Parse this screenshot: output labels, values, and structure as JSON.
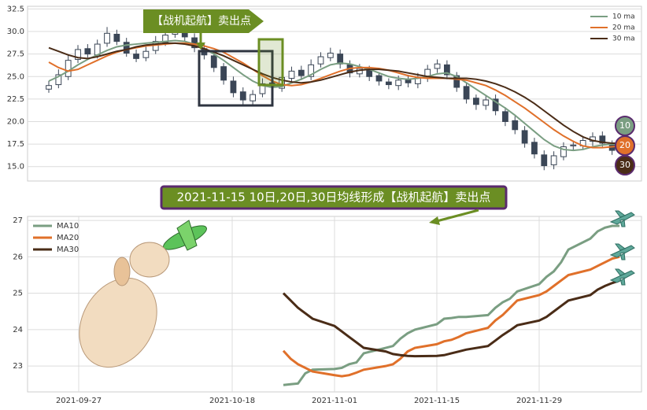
{
  "chart_data": [
    {
      "type": "candlestick",
      "annotation": "【战机起航】卖出点",
      "candle_color": "#3b4656",
      "ylim": [
        13.4,
        32.8
      ],
      "yticks": [
        {
          "value": 15,
          "label": "15.0"
        },
        {
          "value": 17.5,
          "label": "17.5"
        },
        {
          "value": 20,
          "label": "20.0"
        },
        {
          "value": 22.5,
          "label": "22.5"
        },
        {
          "value": 25,
          "label": "25.0"
        },
        {
          "value": 27.5,
          "label": "27.5"
        },
        {
          "value": 30,
          "label": "30.0"
        },
        {
          "value": 32.5,
          "label": "32.5"
        }
      ],
      "grid": true,
      "legend": "upper right",
      "badges": [
        "10",
        "20",
        "30"
      ],
      "open": [
        23.6,
        24.1,
        25.0,
        26.9,
        28.1,
        27.4,
        28.7,
        29.7,
        28.8,
        27.5,
        27.1,
        27.9,
        28.8,
        29.7,
        30.4,
        29.3,
        28.1,
        27.3,
        26.1,
        24.5,
        23.3,
        22.3,
        23.1,
        24.3,
        23.7,
        24.8,
        25.7,
        25.0,
        26.4,
        27.1,
        27.5,
        26.3,
        25.3,
        25.8,
        25.1,
        24.4,
        24.0,
        24.7,
        24.2,
        24.8,
        25.9,
        26.3,
        25.1,
        23.9,
        22.6,
        21.8,
        22.5,
        21.1,
        20.1,
        19.0,
        17.7,
        16.3,
        15.2,
        16.1,
        17.3,
        17.3,
        17.8,
        18.4,
        17.5,
        16.9
      ],
      "high": [
        24.5,
        25.8,
        27.4,
        28.5,
        28.6,
        29.1,
        30.5,
        30.2,
        29.3,
        28.0,
        28.3,
        29.5,
        30.1,
        31.2,
        30.9,
        29.8,
        28.6,
        27.8,
        26.5,
        25.0,
        23.8,
        23.5,
        24.8,
        24.7,
        25.4,
        26.1,
        26.2,
        26.9,
        27.7,
        28.2,
        28.0,
        26.8,
        26.4,
        26.2,
        25.5,
        24.8,
        25.1,
        25.2,
        25.4,
        26.3,
        26.9,
        26.8,
        25.5,
        24.3,
        23.0,
        22.9,
        23.0,
        21.6,
        20.6,
        19.5,
        18.2,
        16.8,
        16.7,
        17.7,
        17.9,
        18.4,
        18.8,
        18.9,
        17.9,
        18.0
      ],
      "low": [
        23.2,
        23.7,
        24.6,
        26.5,
        27.1,
        27.0,
        28.3,
        28.5,
        27.2,
        26.6,
        26.7,
        27.5,
        28.4,
        29.3,
        28.9,
        27.7,
        26.9,
        25.5,
        24.1,
        22.7,
        21.8,
        21.8,
        22.7,
        23.3,
        23.3,
        24.4,
        24.6,
        24.6,
        26.0,
        26.7,
        25.9,
        24.9,
        24.9,
        24.5,
        24.0,
        23.6,
        23.5,
        23.8,
        23.7,
        24.4,
        25.4,
        24.7,
        23.3,
        22.0,
        21.3,
        21.3,
        20.7,
        19.5,
        18.6,
        17.1,
        15.9,
        14.6,
        14.7,
        15.7,
        16.8,
        16.9,
        17.3,
        17.2,
        16.3,
        16.5
      ],
      "close": [
        24.0,
        25.2,
        26.8,
        28.0,
        27.5,
        28.6,
        29.8,
        28.9,
        27.6,
        27.0,
        27.8,
        28.9,
        29.6,
        30.5,
        29.4,
        28.2,
        27.4,
        26.0,
        24.6,
        23.2,
        22.4,
        23.0,
        24.2,
        23.8,
        24.9,
        25.6,
        25.1,
        26.3,
        27.2,
        27.6,
        26.4,
        25.4,
        25.9,
        25.0,
        24.5,
        24.1,
        24.6,
        24.3,
        24.9,
        25.8,
        26.4,
        25.2,
        23.8,
        22.5,
        21.9,
        22.4,
        21.2,
        20.0,
        19.1,
        17.6,
        16.4,
        15.1,
        16.2,
        17.2,
        17.4,
        17.9,
        18.3,
        17.6,
        16.8,
        17.5
      ],
      "series": [
        {
          "name": "10 ma",
          "color": "#7a9e82",
          "values": [
            24.5,
            25.0,
            25.6,
            26.3,
            26.9,
            27.4,
            27.9,
            28.3,
            28.5,
            28.6,
            28.7,
            28.8,
            28.9,
            29.0,
            28.9,
            28.6,
            28.1,
            27.5,
            26.8,
            26.0,
            25.2,
            24.5,
            24.0,
            23.8,
            23.9,
            24.3,
            24.7,
            25.2,
            25.8,
            26.3,
            26.5,
            26.4,
            26.1,
            25.8,
            25.4,
            25.0,
            24.8,
            24.7,
            24.8,
            25.0,
            25.3,
            25.4,
            25.0,
            24.3,
            23.6,
            22.9,
            22.2,
            21.5,
            20.7,
            19.8,
            18.9,
            18.0,
            17.3,
            16.9,
            16.8,
            16.9,
            17.2,
            17.4,
            17.5,
            17.5
          ]
        },
        {
          "name": "20 ma",
          "color": "#e0702a",
          "values": [
            26.6,
            26.0,
            25.6,
            25.8,
            26.3,
            26.8,
            27.3,
            27.7,
            28.0,
            28.2,
            28.4,
            28.5,
            28.6,
            28.7,
            28.7,
            28.6,
            28.4,
            28.1,
            27.7,
            27.1,
            26.5,
            25.8,
            25.1,
            24.5,
            24.1,
            24.0,
            24.1,
            24.4,
            24.8,
            25.2,
            25.6,
            25.9,
            26.0,
            26.0,
            25.9,
            25.7,
            25.4,
            25.1,
            24.9,
            24.8,
            24.8,
            24.8,
            24.7,
            24.6,
            24.3,
            24.0,
            23.5,
            22.9,
            22.2,
            21.5,
            20.7,
            19.9,
            19.1,
            18.4,
            17.8,
            17.3,
            17.1,
            17.1,
            17.2,
            17.3
          ]
        },
        {
          "name": "30 ma",
          "color": "#4a2c17",
          "values": [
            28.2,
            27.8,
            27.4,
            27.1,
            27.0,
            27.2,
            27.5,
            27.8,
            28.0,
            28.3,
            28.5,
            28.6,
            28.7,
            28.7,
            28.6,
            28.4,
            28.1,
            27.7,
            27.3,
            26.8,
            26.3,
            25.8,
            25.3,
            24.9,
            24.6,
            24.4,
            24.3,
            24.4,
            24.6,
            24.9,
            25.2,
            25.5,
            25.7,
            25.8,
            25.8,
            25.7,
            25.6,
            25.4,
            25.2,
            25.0,
            24.9,
            24.8,
            24.8,
            24.8,
            24.7,
            24.5,
            24.2,
            23.8,
            23.3,
            22.7,
            22.0,
            21.2,
            20.4,
            19.6,
            18.9,
            18.3,
            17.9,
            17.7,
            17.6,
            17.6
          ]
        }
      ]
    },
    {
      "type": "line",
      "title": "2021-11-15 10日,20日,30日均线形成【战机起航】卖出点",
      "x": [
        "2021-10-25",
        "2021-10-26",
        "2021-10-27",
        "2021-10-28",
        "2021-10-29",
        "2021-11-01",
        "2021-11-02",
        "2021-11-03",
        "2021-11-04",
        "2021-11-05",
        "2021-11-08",
        "2021-11-09",
        "2021-11-10",
        "2021-11-11",
        "2021-11-12",
        "2021-11-15",
        "2021-11-16",
        "2021-11-17",
        "2021-11-18",
        "2021-11-19",
        "2021-11-22",
        "2021-11-23",
        "2021-11-24",
        "2021-11-25",
        "2021-11-26",
        "2021-11-29",
        "2021-11-30",
        "2021-12-01",
        "2021-12-02",
        "2021-12-03",
        "2021-12-06",
        "2021-12-07",
        "2021-12-08",
        "2021-12-09",
        "2021-12-10"
      ],
      "xlim": [
        "2021-09-20",
        "2021-12-13"
      ],
      "xticks": [
        "2021-09-27",
        "2021-10-18",
        "2021-11-01",
        "2021-11-15",
        "2021-11-29"
      ],
      "ylim": [
        22.29,
        27.11
      ],
      "yticks": [
        23,
        24,
        25,
        26,
        27
      ],
      "grid": true,
      "legend": "upper left",
      "series": [
        {
          "name": "MA10",
          "color": "#7a9e82",
          "values": [
            22.48,
            22.5,
            22.52,
            22.8,
            22.9,
            22.92,
            22.95,
            23.05,
            23.1,
            23.35,
            23.5,
            23.55,
            23.75,
            23.9,
            24.0,
            24.15,
            24.3,
            24.32,
            24.35,
            24.35,
            24.4,
            24.6,
            24.75,
            24.85,
            25.05,
            25.25,
            25.45,
            25.6,
            25.85,
            26.2,
            26.5,
            26.7,
            26.8,
            26.85,
            26.85
          ]
        },
        {
          "name": "MA20",
          "color": "#e0702a",
          "values": [
            23.42,
            23.2,
            23.05,
            22.95,
            22.85,
            22.75,
            22.72,
            22.75,
            22.82,
            22.9,
            23.0,
            23.05,
            23.2,
            23.4,
            23.5,
            23.6,
            23.68,
            23.72,
            23.8,
            23.9,
            24.05,
            24.25,
            24.4,
            24.6,
            24.8,
            24.95,
            25.05,
            25.2,
            25.35,
            25.5,
            25.65,
            25.75,
            25.85,
            25.95,
            26.0
          ]
        },
        {
          "name": "MA30",
          "color": "#4a2c17",
          "values": [
            25.0,
            24.8,
            24.6,
            24.45,
            24.3,
            24.1,
            23.95,
            23.8,
            23.65,
            23.5,
            23.4,
            23.33,
            23.3,
            23.28,
            23.27,
            23.28,
            23.3,
            23.35,
            23.4,
            23.45,
            23.55,
            23.7,
            23.85,
            23.98,
            24.12,
            24.25,
            24.35,
            24.5,
            24.65,
            24.8,
            24.95,
            25.1,
            25.2,
            25.28,
            25.35
          ]
        }
      ]
    }
  ]
}
